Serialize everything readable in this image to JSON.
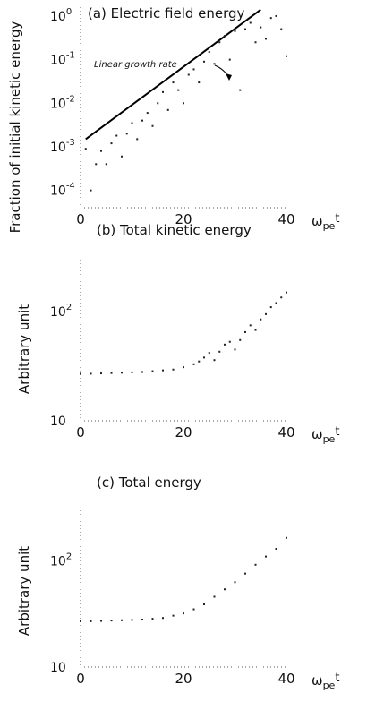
{
  "chart_data": [
    {
      "type": "scatter",
      "title": "(a)  Electric field energy",
      "ylabel": "Fraction of initial kinetic energy",
      "xlabel_main": "ω",
      "xlabel_sub": "pe",
      "xlabel_tail": "t",
      "y_scale": "log",
      "xlim": [
        0,
        40
      ],
      "ylim": [
        4e-05,
        1.6
      ],
      "x_ticks": [
        "0",
        "20",
        "40"
      ],
      "y_ticks": [
        {
          "base": "10",
          "exp": "0",
          "value": 1
        },
        {
          "base": "10",
          "exp": "-1",
          "value": 0.1
        },
        {
          "base": "10",
          "exp": "-2",
          "value": 0.01
        },
        {
          "base": "10",
          "exp": "-3",
          "value": 0.001
        },
        {
          "base": "10",
          "exp": "-4",
          "value": 0.0001
        }
      ],
      "annotation": "Linear growth rate",
      "series": [
        {
          "kind": "line",
          "x": [
            1,
            35
          ],
          "y": [
            0.0015,
            1.4
          ]
        },
        {
          "kind": "points",
          "x": [
            1,
            2,
            3,
            4,
            5,
            6,
            7,
            8,
            9,
            10,
            11,
            12,
            13,
            14,
            15,
            16,
            17,
            18,
            19,
            20,
            21,
            22,
            23,
            24,
            25,
            26,
            27,
            28,
            29,
            30,
            31,
            32,
            33,
            34,
            35,
            36,
            37,
            38,
            39,
            40
          ],
          "y": [
            0.0009,
            0.0001,
            0.0004,
            0.0008,
            0.0004,
            0.0012,
            0.0018,
            0.0006,
            0.002,
            0.0035,
            0.0015,
            0.004,
            0.006,
            0.003,
            0.01,
            0.018,
            0.007,
            0.03,
            0.02,
            0.01,
            0.045,
            0.06,
            0.03,
            0.09,
            0.15,
            0.08,
            0.25,
            0.35,
            0.1,
            0.45,
            0.02,
            0.5,
            0.7,
            0.25,
            0.55,
            0.3,
            0.9,
            1.0,
            0.5,
            0.12
          ]
        }
      ]
    },
    {
      "type": "scatter",
      "title": "(b)  Total kinetic energy",
      "ylabel": "Arbitrary unit",
      "xlabel_main": "ω",
      "xlabel_sub": "pe",
      "xlabel_tail": "t",
      "y_scale": "log",
      "xlim": [
        0,
        40
      ],
      "ylim": [
        10,
        300
      ],
      "x_ticks": [
        "0",
        "20",
        "40"
      ],
      "y_ticks": [
        {
          "base": "10",
          "exp": "",
          "value": 10
        },
        {
          "base": "10",
          "exp": "2",
          "value": 100
        }
      ],
      "series": [
        {
          "kind": "points",
          "x": [
            0,
            2,
            4,
            6,
            8,
            10,
            12,
            14,
            16,
            18,
            20,
            22,
            23,
            24,
            25,
            26,
            27,
            28,
            29,
            30,
            31,
            32,
            33,
            34,
            35,
            36,
            37,
            38,
            39,
            40
          ],
          "y": [
            27,
            27,
            27.2,
            27.4,
            27.6,
            27.8,
            28,
            28.5,
            29,
            29.5,
            31,
            33,
            35,
            38,
            42,
            36,
            43,
            50,
            53,
            45,
            55,
            65,
            75,
            68,
            85,
            95,
            110,
            120,
            135,
            150
          ]
        }
      ]
    },
    {
      "type": "scatter",
      "title": "(c)  Total energy",
      "ylabel": "Arbitrary unit",
      "xlabel_main": "ω",
      "xlabel_sub": "pe",
      "xlabel_tail": "t",
      "y_scale": "log",
      "xlim": [
        0,
        40
      ],
      "ylim": [
        10,
        300
      ],
      "x_ticks": [
        "0",
        "20",
        "40"
      ],
      "y_ticks": [
        {
          "base": "10",
          "exp": "",
          "value": 10
        },
        {
          "base": "10",
          "exp": "2",
          "value": 100
        }
      ],
      "series": [
        {
          "kind": "points",
          "x": [
            0,
            2,
            4,
            6,
            8,
            10,
            12,
            14,
            16,
            18,
            20,
            22,
            24,
            26,
            28,
            30,
            32,
            34,
            36,
            38,
            40
          ],
          "y": [
            27,
            27,
            27.2,
            27.4,
            27.6,
            27.8,
            28,
            28.5,
            29,
            30.5,
            32,
            35,
            39,
            46,
            54,
            63,
            76,
            92,
            110,
            130,
            165
          ]
        }
      ]
    }
  ]
}
